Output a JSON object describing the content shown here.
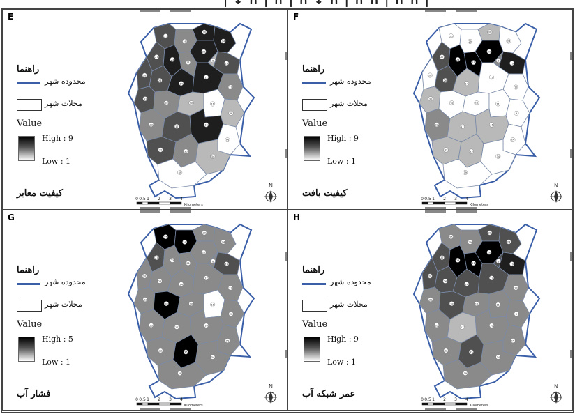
{
  "legend": {
    "title": "راهنما",
    "boundary_label": "محدوده شهر",
    "districts_label": "محلات شهر",
    "value_label": "Value",
    "low_label": "Low : 1"
  },
  "scale": {
    "ticks": [
      "0",
      "0.5",
      "1",
      "2",
      "3",
      "4"
    ],
    "unit": "Kilometers"
  },
  "colors": {
    "boundary": "#3a5fa8",
    "border": "#444444",
    "shades": [
      "#ffffff",
      "#b9b9b9",
      "#8a8a8a",
      "#505050",
      "#1e1e1e",
      "#000000"
    ]
  },
  "panels": [
    {
      "letter": "E",
      "caption": "کیفیت معابر",
      "high_label": "High : 9",
      "shades": [
        3,
        2,
        4,
        4,
        3,
        4,
        2,
        4,
        3,
        1,
        3,
        3,
        4,
        4,
        2,
        3,
        2,
        1,
        0,
        1,
        2,
        3,
        4,
        0,
        3,
        2,
        1,
        0
      ]
    },
    {
      "letter": "F",
      "caption": "کیفیت بافت",
      "high_label": "High : 9",
      "shades": [
        0,
        0,
        1,
        0,
        3,
        5,
        5,
        5,
        4,
        2,
        0,
        3,
        1,
        0,
        0,
        1,
        0,
        0,
        0,
        0,
        2,
        1,
        1,
        0,
        1,
        1,
        0,
        0
      ]
    },
    {
      "letter": "G",
      "caption": "فشار آب",
      "high_label": "High : 5",
      "shades": [
        5,
        5,
        2,
        2,
        3,
        2,
        2,
        2,
        3,
        2,
        2,
        2,
        2,
        2,
        2,
        2,
        5,
        2,
        0,
        2,
        2,
        2,
        2,
        2,
        2,
        5,
        2,
        2
      ]
    },
    {
      "letter": "H",
      "caption": "عمر شبکه آب",
      "high_label": "High : 9",
      "shades": [
        2,
        2,
        3,
        3,
        3,
        5,
        5,
        5,
        4,
        3,
        3,
        3,
        3,
        3,
        2,
        2,
        3,
        2,
        2,
        2,
        2,
        1,
        2,
        2,
        2,
        3,
        2,
        2
      ]
    }
  ]
}
